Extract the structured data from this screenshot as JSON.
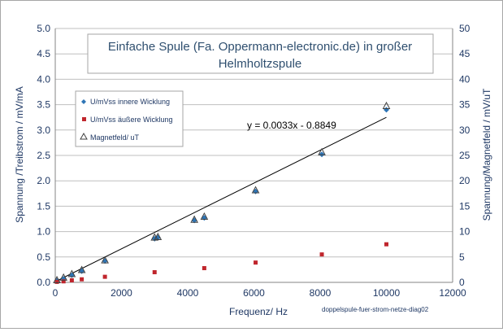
{
  "chart_data": {
    "type": "scatter",
    "title_lines": [
      "Einfache Spule (Fa. Oppermann-electronic.de)  in großer",
      "Helmholtzspule"
    ],
    "xlabel": "Frequenz/ Hz",
    "ylabel": "Spannung /Treibstrom  / mV/mA",
    "y2label": "Spannung/Magnetfeld / mV/uT",
    "xlim": [
      0,
      12000
    ],
    "ylim": [
      0,
      5.0
    ],
    "y2lim": [
      0,
      50
    ],
    "x_ticks": [
      "0",
      "2000",
      "4000",
      "6000",
      "8000",
      "10000",
      "12000"
    ],
    "y_ticks": [
      "0.0",
      "0.5",
      "1.0",
      "1.5",
      "2.0",
      "2.5",
      "3.0",
      "3.5",
      "4.0",
      "4.5",
      "5.0"
    ],
    "y2_ticks": [
      "0",
      "5",
      "10",
      "15",
      "20",
      "25",
      "30",
      "35",
      "40",
      "45",
      "50"
    ],
    "grid": "horizontal",
    "legend_position": "upper-left",
    "series": [
      {
        "name": "U/mVss innere Wicklung",
        "marker": "diamond",
        "color": "#2e75b6",
        "x": [
          50,
          250,
          500,
          800,
          1500,
          3000,
          3100,
          4200,
          4500,
          6050,
          8050,
          10000
        ],
        "y": [
          0.03,
          0.07,
          0.14,
          0.22,
          0.42,
          0.86,
          0.88,
          1.22,
          1.27,
          1.79,
          2.52,
          3.4
        ]
      },
      {
        "name": "U/mVss äußere Wicklung",
        "marker": "square",
        "color": "#c0262d",
        "x": [
          50,
          250,
          500,
          800,
          1500,
          3000,
          4500,
          6050,
          8050,
          10000
        ],
        "y": [
          0.01,
          0.02,
          0.04,
          0.06,
          0.11,
          0.2,
          0.28,
          0.39,
          0.55,
          0.75
        ]
      },
      {
        "name": "Magnetfeld/ uT",
        "marker": "triangle",
        "color": "#404040",
        "axis": "right",
        "x": [
          50,
          250,
          500,
          800,
          1500,
          3000,
          3100,
          4200,
          4500,
          6050,
          8050,
          10000
        ],
        "y": [
          0.4,
          0.9,
          1.6,
          2.4,
          4.3,
          8.8,
          8.9,
          12.3,
          12.9,
          18.1,
          25.6,
          34.7
        ]
      }
    ],
    "trendline": {
      "label": "y = 0.0033x - 0.8849",
      "x_range": [
        50,
        10000
      ],
      "y_range": [
        0.03,
        3.25
      ]
    },
    "source_note": "doppelspule-fuer-strom-netze-diag02"
  }
}
